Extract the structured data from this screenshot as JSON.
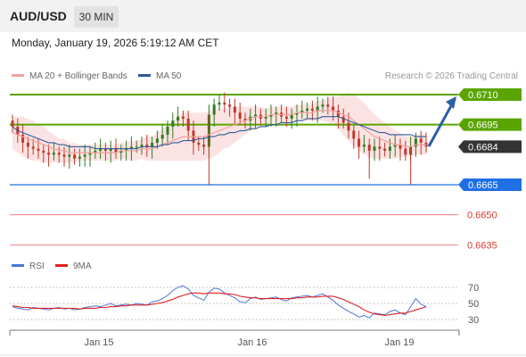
{
  "header": {
    "pair": "AUD/USD",
    "timeframe": "30 MIN"
  },
  "datetime": "Monday, January 19, 2026 5:19:12 AM CET",
  "legend": {
    "bollinger": {
      "label": "MA 20 + Bollinger Bands",
      "color": "#f08080"
    },
    "ma50": {
      "label": "MA 50",
      "color": "#2f5b9a"
    }
  },
  "credit": "Research © 2026 Trading Central",
  "rsi_legend": {
    "rsi": {
      "label": "RSI",
      "color": "#4a78d6"
    },
    "ma9": {
      "label": "9MA",
      "color": "#e02020"
    }
  },
  "colors": {
    "up": "#2e7d1e",
    "down": "#c0392b",
    "resistance": "#5aa400",
    "support": "#1f6fe5",
    "target_line": "#f08080",
    "current": "#333333",
    "arrow": "#2b5fa8"
  },
  "levels": [
    {
      "value": "0.6710",
      "kind": "resistance-strong"
    },
    {
      "value": "0.6695",
      "kind": "resistance"
    },
    {
      "value": "0.6684",
      "kind": "current"
    },
    {
      "value": "0.6665",
      "kind": "support"
    },
    {
      "value": "0.6650",
      "kind": "target"
    },
    {
      "value": "0.6635",
      "kind": "target"
    }
  ],
  "x_labels": [
    "Jan 15",
    "Jan 16",
    "Jan 19"
  ],
  "rsi_ticks": [
    "70",
    "50",
    "30"
  ],
  "chart_data": {
    "type": "candlestick",
    "instrument": "AUD/USD",
    "interval": "30 MIN",
    "ylim": [
      0.6632,
      0.6715
    ],
    "close": [
      0.6694,
      0.669,
      0.6686,
      0.6684,
      0.6683,
      0.6682,
      0.6681,
      0.668,
      0.6681,
      0.668,
      0.6679,
      0.668,
      0.6678,
      0.6679,
      0.668,
      0.6681,
      0.6682,
      0.6683,
      0.6682,
      0.6683,
      0.6681,
      0.6682,
      0.6683,
      0.6684,
      0.6684,
      0.6685,
      0.6684,
      0.6686,
      0.6688,
      0.669,
      0.6694,
      0.6697,
      0.6699,
      0.6698,
      0.6692,
      0.6686,
      0.6685,
      0.6684,
      0.67,
      0.6705,
      0.6706,
      0.6705,
      0.6704,
      0.6701,
      0.6698,
      0.6697,
      0.6699,
      0.67,
      0.6698,
      0.6699,
      0.67,
      0.6701,
      0.6699,
      0.6698,
      0.67,
      0.6701,
      0.6702,
      0.6703,
      0.6702,
      0.6704,
      0.6705,
      0.6704,
      0.6702,
      0.6699,
      0.6696,
      0.6692,
      0.6688,
      0.6684,
      0.6685,
      0.6682,
      0.6684,
      0.6683,
      0.6682,
      0.6684,
      0.6685,
      0.6683,
      0.668,
      0.6684,
      0.6688,
      0.6686,
      0.6684
    ],
    "ma20": [
      0.6691,
      0.669,
      0.6689,
      0.6688,
      0.6687,
      0.6686,
      0.6685,
      0.6684,
      0.6683,
      0.6682,
      0.6682,
      0.6681,
      0.6681,
      0.6681,
      0.6681,
      0.6681,
      0.6681,
      0.6681,
      0.6681,
      0.6681,
      0.6681,
      0.6682,
      0.6682,
      0.6682,
      0.6682,
      0.6683,
      0.6683,
      0.6683,
      0.6684,
      0.6685,
      0.6686,
      0.6687,
      0.6688,
      0.6689,
      0.6689,
      0.6689,
      0.6689,
      0.6689,
      0.669,
      0.6691,
      0.6692,
      0.6693,
      0.6694,
      0.6695,
      0.6696,
      0.6697,
      0.6698,
      0.6699,
      0.6699,
      0.6699,
      0.67,
      0.67,
      0.67,
      0.67,
      0.67,
      0.6701,
      0.6701,
      0.6701,
      0.6701,
      0.6702,
      0.6702,
      0.6702,
      0.6702,
      0.6701,
      0.67,
      0.6699,
      0.6697,
      0.6695,
      0.6693,
      0.6691,
      0.6689,
      0.6688,
      0.6687,
      0.6686,
      0.6685,
      0.6685,
      0.6684,
      0.6684,
      0.6685,
      0.6685,
      0.6685
    ],
    "ma50": [
      0.6694,
      0.6692,
      0.6691,
      0.669,
      0.6689,
      0.6688,
      0.6687,
      0.6686,
      0.6686,
      0.6685,
      0.6685,
      0.6684,
      0.6684,
      0.6684,
      0.6684,
      0.6684,
      0.6683,
      0.6683,
      0.6683,
      0.6683,
      0.6683,
      0.6683,
      0.6683,
      0.6683,
      0.6683,
      0.6684,
      0.6684,
      0.6684,
      0.6684,
      0.6685,
      0.6685,
      0.6686,
      0.6686,
      0.6687,
      0.6687,
      0.6687,
      0.6688,
      0.6688,
      0.6689,
      0.6689,
      0.669,
      0.669,
      0.6691,
      0.6691,
      0.6692,
      0.6692,
      0.6693,
      0.6693,
      0.6694,
      0.6694,
      0.6695,
      0.6695,
      0.6696,
      0.6696,
      0.6696,
      0.6697,
      0.6697,
      0.6698,
      0.6698,
      0.6698,
      0.6699,
      0.6699,
      0.6699,
      0.6699,
      0.6698,
      0.6697,
      0.6696,
      0.6695,
      0.6694,
      0.6693,
      0.6692,
      0.6691,
      0.6691,
      0.669,
      0.669,
      0.669,
      0.669,
      0.669,
      0.6689,
      0.6689,
      0.6689
    ],
    "bb_width": [
      0.0008,
      0.0009,
      0.001,
      0.001,
      0.001,
      0.0009,
      0.0009,
      0.0008,
      0.0007,
      0.0006,
      0.0006,
      0.0005,
      0.0005,
      0.0004,
      0.0004,
      0.0004,
      0.0004,
      0.0004,
      0.0004,
      0.0004,
      0.0004,
      0.0004,
      0.0004,
      0.0005,
      0.0005,
      0.0005,
      0.0006,
      0.0006,
      0.0007,
      0.0008,
      0.0009,
      0.001,
      0.0011,
      0.0012,
      0.0012,
      0.0012,
      0.0012,
      0.0012,
      0.0012,
      0.0012,
      0.0011,
      0.001,
      0.001,
      0.0009,
      0.0008,
      0.0007,
      0.0006,
      0.0005,
      0.0005,
      0.0004,
      0.0004,
      0.0004,
      0.0004,
      0.0004,
      0.0004,
      0.0004,
      0.0004,
      0.0004,
      0.0004,
      0.0005,
      0.0005,
      0.0006,
      0.0007,
      0.0008,
      0.001,
      0.0012,
      0.0013,
      0.0013,
      0.0013,
      0.0012,
      0.0011,
      0.001,
      0.0009,
      0.0008,
      0.0007,
      0.0006,
      0.0005,
      0.0005,
      0.0005,
      0.0005,
      0.0005
    ],
    "rsi": [
      46,
      44,
      43,
      42,
      45,
      44,
      43,
      42,
      44,
      45,
      43,
      44,
      42,
      43,
      45,
      46,
      47,
      46,
      48,
      50,
      47,
      48,
      49,
      48,
      50,
      49,
      48,
      52,
      53,
      56,
      60,
      66,
      70,
      72,
      68,
      60,
      57,
      54,
      64,
      69,
      68,
      63,
      60,
      57,
      52,
      51,
      56,
      58,
      55,
      56,
      57,
      58,
      55,
      53,
      57,
      58,
      59,
      60,
      58,
      60,
      62,
      58,
      54,
      48,
      44,
      40,
      37,
      33,
      35,
      32,
      38,
      37,
      36,
      40,
      42,
      38,
      36,
      46,
      56,
      49,
      46
    ],
    "rsi_ma9": [
      47,
      46,
      45,
      45,
      44,
      44,
      44,
      44,
      44,
      44,
      44,
      44,
      44,
      43,
      44,
      44,
      44,
      45,
      45,
      46,
      46,
      47,
      47,
      48,
      48,
      48,
      48,
      49,
      50,
      51,
      53,
      55,
      58,
      60,
      62,
      63,
      63,
      62,
      63,
      63,
      63,
      62,
      62,
      61,
      59,
      58,
      57,
      57,
      56,
      56,
      56,
      56,
      56,
      56,
      56,
      57,
      57,
      58,
      58,
      58,
      59,
      59,
      59,
      57,
      55,
      52,
      49,
      46,
      42,
      39,
      37,
      36,
      35,
      36,
      37,
      38,
      38,
      40,
      42,
      44,
      46
    ],
    "rsi_ylim": [
      20,
      80
    ]
  }
}
